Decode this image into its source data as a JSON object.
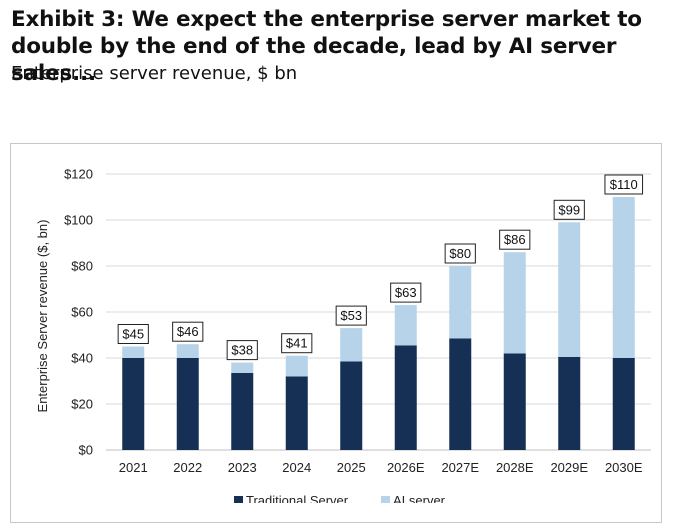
{
  "header": {
    "title": "Exhibit 3: We expect the enterprise server market to double by the end of the decade, lead by AI server sales...",
    "subtitle": "Enterprise server revenue, $ bn"
  },
  "colors": {
    "traditional": "#152f55",
    "ai": "#b6d3ea",
    "grid": "#d9d9d9"
  },
  "chart_data": {
    "type": "bar",
    "stacked": true,
    "categories": [
      "2021",
      "2022",
      "2023",
      "2024",
      "2025",
      "2026E",
      "2027E",
      "2028E",
      "2029E",
      "2030E"
    ],
    "series": [
      {
        "name": "Traditional Server",
        "values": [
          40,
          40,
          33.5,
          32,
          38.5,
          45.5,
          48.5,
          42,
          40.5,
          40
        ]
      },
      {
        "name": "AI server",
        "values": [
          5,
          6,
          4.5,
          9,
          14.5,
          17.5,
          31.5,
          44,
          58.5,
          70
        ]
      }
    ],
    "totals": [
      45,
      46,
      38,
      41,
      53,
      63,
      80,
      86,
      99,
      110
    ],
    "total_labels": [
      "$45",
      "$46",
      "$38",
      "$41",
      "$53",
      "$63",
      "$80",
      "$86",
      "$99",
      "$110"
    ],
    "ylabel": "Enterprise Server revenue ($, bn)",
    "ylim": [
      0,
      120
    ],
    "yticks": [
      0,
      20,
      40,
      60,
      80,
      100,
      120
    ],
    "ytick_labels": [
      "$0",
      "$20",
      "$40",
      "$60",
      "$80",
      "$100",
      "$120"
    ],
    "grid": true,
    "legend": "bottom"
  }
}
